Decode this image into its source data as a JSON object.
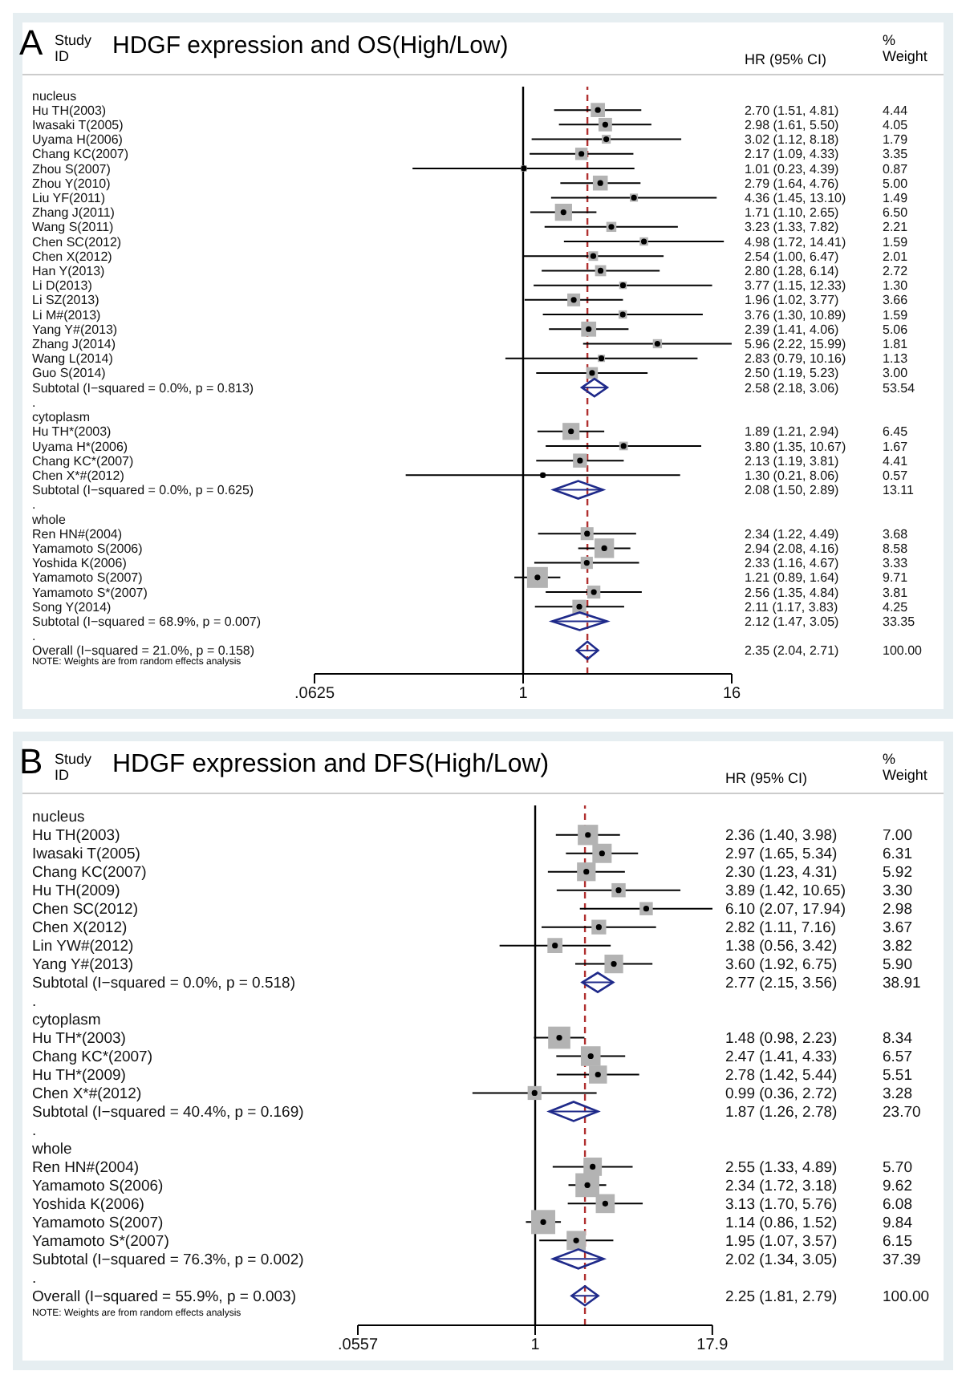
{
  "chart_data": [
    {
      "type": "scatter",
      "title": "HDGF expression and OS(High/Low)",
      "orientation": "horizontal",
      "log": "x",
      "xlim": [
        0.0625,
        16
      ],
      "xticks": [
        {
          "value": 0.0625,
          "label": ".0625"
        },
        1,
        16
      ],
      "annotations": [
        "A",
        "Study ID",
        "HR (95% CI)",
        "% Weight",
        "NOTE: Weights are from random effects analysis",
        "2.70 (1.51, 4.81)",
        "4.44",
        "2.98 (1.61, 5.50)",
        "4.05",
        "3.02 (1.12, 8.18)",
        "1.79",
        "2.17 (1.09, 4.33)",
        "3.35",
        "1.01 (0.23, 4.39)",
        "0.87",
        "2.79 (1.64, 4.76)",
        "5.00",
        "4.36 (1.45, 13.10)",
        "1.49",
        "1.71 (1.10, 2.65)",
        "6.50",
        "3.23 (1.33, 7.82)",
        "2.21",
        "4.98 (1.72, 14.41)",
        "1.59",
        "2.54 (1.00, 6.47)",
        "2.01",
        "2.80 (1.28, 6.14)",
        "2.72",
        "3.77 (1.15, 12.33)",
        "1.30",
        "1.96 (1.02, 3.77)",
        "3.66",
        "3.76 (1.30, 10.89)",
        "1.59",
        "2.39 (1.41, 4.06)",
        "5.06",
        "5.96 (2.22, 15.99)",
        "1.81",
        "2.83 (0.79, 10.16)",
        "1.13",
        "2.50 (1.19, 5.23)",
        "3.00",
        "2.58 (2.18, 3.06)",
        "53.54",
        "1.89 (1.21, 2.94)",
        "6.45",
        "3.80 (1.35, 10.67)",
        "1.67",
        "2.13 (1.19, 3.81)",
        "4.41",
        "1.30 (0.21, 8.06)",
        "0.57",
        "2.08 (1.50, 2.89)",
        "13.11",
        "2.34 (1.22, 4.49)",
        "3.68",
        "2.94 (2.08, 4.16)",
        "8.58",
        "2.33 (1.16, 4.67)",
        "3.33",
        "1.21 (0.89, 1.64)",
        "9.71",
        "2.56 (1.35, 4.84)",
        "3.81",
        "2.11 (1.17, 3.83)",
        "4.25",
        "2.12 (1.47, 3.05)",
        "33.35",
        "2.35 (2.04, 2.71)",
        "100.00"
      ],
      "ref_lines": [
        {
          "axis": "x",
          "value": 1,
          "color": "#000000",
          "line_style": "solid"
        },
        {
          "axis": "x",
          "value": 2.35,
          "color": "#b03030",
          "line_style": "dashed"
        }
      ],
      "categories": [
        "nucleus",
        "Hu TH(2003)",
        "Iwasaki T(2005)",
        "Uyama H(2006)",
        "Chang KC(2007)",
        "Zhou S(2007)",
        "Zhou Y(2010)",
        "Liu YF(2011)",
        "Zhang J(2011)",
        "Wang S(2011)",
        "Chen SC(2012)",
        "Chen X(2012)",
        "Han Y(2013)",
        "Li D(2013)",
        "Li SZ(2013)",
        "Li M#(2013)",
        "Yang Y#(2013)",
        "Zhang J(2014)",
        "Wang L(2014)",
        "Guo S(2014)",
        "Subtotal  (I−squared = 0.0%, p = 0.813)",
        ".",
        "cytoplasm",
        "Hu TH*(2003)",
        "Uyama H*(2006)",
        "Chang KC*(2007)",
        "Chen X*#(2012)",
        "Subtotal  (I−squared = 0.0%, p = 0.625)",
        ".",
        "whole",
        "Ren HN#(2004)",
        "Yamamoto S(2006)",
        "Yoshida K(2006)",
        "Yamamoto S(2007)",
        "Yamamoto S*(2007)",
        "Song Y(2014)",
        "Subtotal  (I−squared = 68.9%, p = 0.007)",
        ".",
        "Overall  (I−squared = 21.0%, p = 0.158)"
      ],
      "series": [
        {
          "type": "bubble",
          "marker": "square",
          "color": "#b3b3b3",
          "values": [
            null,
            2.7,
            2.98,
            3.02,
            2.17,
            1.01,
            2.79,
            4.36,
            1.71,
            3.23,
            4.98,
            2.54,
            2.8,
            3.77,
            1.96,
            3.76,
            2.39,
            5.96,
            2.83,
            2.5,
            null,
            null,
            null,
            1.89,
            3.8,
            2.13,
            1.3,
            null,
            null,
            null,
            2.34,
            2.94,
            2.33,
            1.21,
            2.56,
            2.11,
            null,
            null,
            null
          ],
          "errors": [
            null,
            [
              1.51,
              4.81
            ],
            [
              1.61,
              5.5
            ],
            [
              1.12,
              8.18
            ],
            [
              1.09,
              4.33
            ],
            [
              0.23,
              4.39
            ],
            [
              1.64,
              4.76
            ],
            [
              1.45,
              13.1
            ],
            [
              1.1,
              2.65
            ],
            [
              1.33,
              7.82
            ],
            [
              1.72,
              14.41
            ],
            [
              1.0,
              6.47
            ],
            [
              1.28,
              6.14
            ],
            [
              1.15,
              12.33
            ],
            [
              1.02,
              3.77
            ],
            [
              1.3,
              10.89
            ],
            [
              1.41,
              4.06
            ],
            [
              2.22,
              15.99
            ],
            [
              0.79,
              10.16
            ],
            [
              1.19,
              5.23
            ],
            null,
            null,
            null,
            [
              1.21,
              2.94
            ],
            [
              1.35,
              10.67
            ],
            [
              1.19,
              3.81
            ],
            [
              0.21,
              8.06
            ],
            null,
            null,
            null,
            [
              1.22,
              4.49
            ],
            [
              2.08,
              4.16
            ],
            [
              1.16,
              4.67
            ],
            [
              0.89,
              1.64
            ],
            [
              1.35,
              4.84
            ],
            [
              1.17,
              3.83
            ],
            null,
            null,
            null
          ],
          "sizes": [
            null,
            0.46,
            0.42,
            0.18,
            0.35,
            0.09,
            0.51,
            0.15,
            0.67,
            0.23,
            0.16,
            0.21,
            0.28,
            0.13,
            0.38,
            0.16,
            0.52,
            0.19,
            0.12,
            0.31,
            null,
            null,
            null,
            0.66,
            0.17,
            0.45,
            0.06,
            null,
            null,
            null,
            0.38,
            0.88,
            0.34,
            1,
            0.39,
            0.44,
            null,
            null,
            null
          ]
        },
        {
          "type": "scatter",
          "marker": "diamond",
          "color": "#1f2a8a",
          "values": [
            null,
            null,
            null,
            null,
            null,
            null,
            null,
            null,
            null,
            null,
            null,
            null,
            null,
            null,
            null,
            null,
            null,
            null,
            null,
            null,
            2.58,
            null,
            null,
            null,
            null,
            null,
            null,
            2.08,
            null,
            null,
            null,
            null,
            null,
            null,
            null,
            null,
            2.12,
            null,
            2.35
          ],
          "errors": [
            null,
            null,
            null,
            null,
            null,
            null,
            null,
            null,
            null,
            null,
            null,
            null,
            null,
            null,
            null,
            null,
            null,
            null,
            null,
            null,
            [
              2.18,
              3.06
            ],
            null,
            null,
            null,
            null,
            null,
            null,
            [
              1.5,
              2.89
            ],
            null,
            null,
            null,
            null,
            null,
            null,
            null,
            null,
            [
              1.47,
              3.05
            ],
            null,
            [
              2.04,
              2.71
            ]
          ]
        }
      ]
    },
    {
      "type": "scatter",
      "title": "HDGF expression and DFS(High/Low)",
      "orientation": "horizontal",
      "log": "x",
      "xlim": [
        0.0557,
        17.94
      ],
      "xticks": [
        {
          "value": 0.0557,
          "label": ".0557"
        },
        1,
        17.9
      ],
      "annotations": [
        "B",
        "Study ID",
        "HR (95% CI)",
        "% Weight",
        "NOTE: Weights are from random effects analysis",
        "2.36 (1.40, 3.98)",
        "7.00",
        "2.97 (1.65, 5.34)",
        "6.31",
        "2.30 (1.23, 4.31)",
        "5.92",
        "3.89 (1.42, 10.65)",
        "3.30",
        "6.10 (2.07, 17.94)",
        "2.98",
        "2.82 (1.11, 7.16)",
        "3.67",
        "1.38 (0.56, 3.42)",
        "3.82",
        "3.60 (1.92, 6.75)",
        "5.90",
        "2.77 (2.15, 3.56)",
        "38.91",
        "1.48 (0.98, 2.23)",
        "8.34",
        "2.47 (1.41, 4.33)",
        "6.57",
        "2.78 (1.42, 5.44)",
        "5.51",
        "0.99 (0.36, 2.72)",
        "3.28",
        "1.87 (1.26, 2.78)",
        "23.70",
        "2.55 (1.33, 4.89)",
        "5.70",
        "2.34 (1.72, 3.18)",
        "9.62",
        "3.13 (1.70, 5.76)",
        "6.08",
        "1.14 (0.86, 1.52)",
        "9.84",
        "1.95 (1.07, 3.57)",
        "6.15",
        "2.02 (1.34, 3.05)",
        "37.39",
        "2.25 (1.81, 2.79)",
        "100.00"
      ],
      "ref_lines": [
        {
          "axis": "x",
          "value": 1,
          "color": "#000000",
          "line_style": "solid"
        },
        {
          "axis": "x",
          "value": 2.25,
          "color": "#b03030",
          "line_style": "dashed"
        }
      ],
      "categories": [
        "nucleus",
        "Hu TH(2003)",
        "Iwasaki T(2005)",
        "Chang KC(2007)",
        "Hu TH(2009)",
        "Chen SC(2012)",
        "Chen X(2012)",
        "Lin YW#(2012)",
        "Yang Y#(2013)",
        "Subtotal  (I−squared = 0.0%, p = 0.518)",
        ".",
        "cytoplasm",
        "Hu TH*(2003)",
        "Chang KC*(2007)",
        "Hu TH*(2009)",
        "Chen X*#(2012)",
        "Subtotal  (I−squared = 40.4%, p = 0.169)",
        ".",
        "whole",
        "Ren HN#(2004)",
        "Yamamoto S(2006)",
        "Yoshida K(2006)",
        "Yamamoto S(2007)",
        "Yamamoto S*(2007)",
        "Subtotal  (I−squared = 76.3%, p = 0.002)",
        ".",
        "Overall  (I−squared = 55.9%, p = 0.003)"
      ],
      "series": [
        {
          "type": "bubble",
          "marker": "square",
          "color": "#b3b3b3",
          "values": [
            null,
            2.36,
            2.97,
            2.3,
            3.89,
            6.1,
            2.82,
            1.38,
            3.6,
            null,
            null,
            null,
            1.48,
            2.47,
            2.78,
            0.99,
            null,
            null,
            null,
            2.55,
            2.34,
            3.13,
            1.14,
            1.95,
            null,
            null,
            null
          ],
          "errors": [
            null,
            [
              1.4,
              3.98
            ],
            [
              1.65,
              5.34
            ],
            [
              1.23,
              4.31
            ],
            [
              1.42,
              10.65
            ],
            [
              2.07,
              17.94
            ],
            [
              1.11,
              7.16
            ],
            [
              0.56,
              3.42
            ],
            [
              1.92,
              6.75
            ],
            null,
            null,
            null,
            [
              0.98,
              2.23
            ],
            [
              1.41,
              4.33
            ],
            [
              1.42,
              5.44
            ],
            [
              0.36,
              2.72
            ],
            null,
            null,
            null,
            [
              1.33,
              4.89
            ],
            [
              1.72,
              3.18
            ],
            [
              1.7,
              5.76
            ],
            [
              0.86,
              1.52
            ],
            [
              1.07,
              3.57
            ],
            null,
            null,
            null
          ],
          "sizes": [
            null,
            0.71,
            0.64,
            0.6,
            0.34,
            0.3,
            0.37,
            0.39,
            0.6,
            null,
            null,
            null,
            0.85,
            0.67,
            0.56,
            0.33,
            null,
            null,
            null,
            0.58,
            0.98,
            0.62,
            1,
            0.63,
            null,
            null,
            null
          ]
        },
        {
          "type": "scatter",
          "marker": "diamond",
          "color": "#1f2a8a",
          "values": [
            null,
            null,
            null,
            null,
            null,
            null,
            null,
            null,
            null,
            2.77,
            null,
            null,
            null,
            null,
            null,
            null,
            1.87,
            null,
            null,
            null,
            null,
            null,
            null,
            null,
            2.02,
            null,
            2.25
          ],
          "errors": [
            null,
            null,
            null,
            null,
            null,
            null,
            null,
            null,
            null,
            [
              2.15,
              3.56
            ],
            null,
            null,
            null,
            null,
            null,
            null,
            [
              1.26,
              2.78
            ],
            null,
            null,
            null,
            null,
            null,
            null,
            null,
            [
              1.34,
              3.05
            ],
            null,
            [
              1.81,
              2.79
            ]
          ]
        }
      ]
    }
  ]
}
